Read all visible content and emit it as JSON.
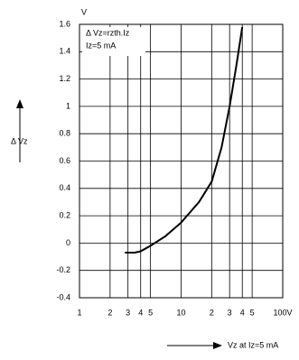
{
  "chart_data": {
    "type": "line",
    "x_scale": "log",
    "grid": true,
    "y_unit": "V",
    "y_label": "Δ Vz",
    "x_label": "Vz at Iz=5 mA",
    "annotations": [
      "Δ Vz=rzth.Iz",
      "Iz=5 mA"
    ],
    "xlim": [
      1,
      100
    ],
    "xticks": [
      1,
      2,
      3,
      4,
      5,
      10,
      {
        "value": 20,
        "label": "2"
      },
      {
        "value": 30,
        "label": "3"
      },
      {
        "value": 40,
        "label": "4"
      },
      {
        "value": 50,
        "label": "5"
      },
      {
        "value": 100,
        "label": "100V"
      }
    ],
    "ylim": [
      -0.4,
      1.6
    ],
    "yticks": [
      -0.4,
      -0.2,
      0,
      0.2,
      0.4,
      0.6,
      0.8,
      1,
      1.2,
      1.4,
      1.6
    ],
    "series": [
      {
        "color": "#000000",
        "x": [
          2.8,
          3.5,
          4,
          5,
          7,
          10,
          15,
          20,
          25,
          30,
          35,
          40
        ],
        "values": [
          -0.07,
          -0.07,
          -0.06,
          -0.02,
          0.05,
          0.15,
          0.3,
          0.45,
          0.7,
          1.0,
          1.3,
          1.58
        ]
      }
    ]
  }
}
